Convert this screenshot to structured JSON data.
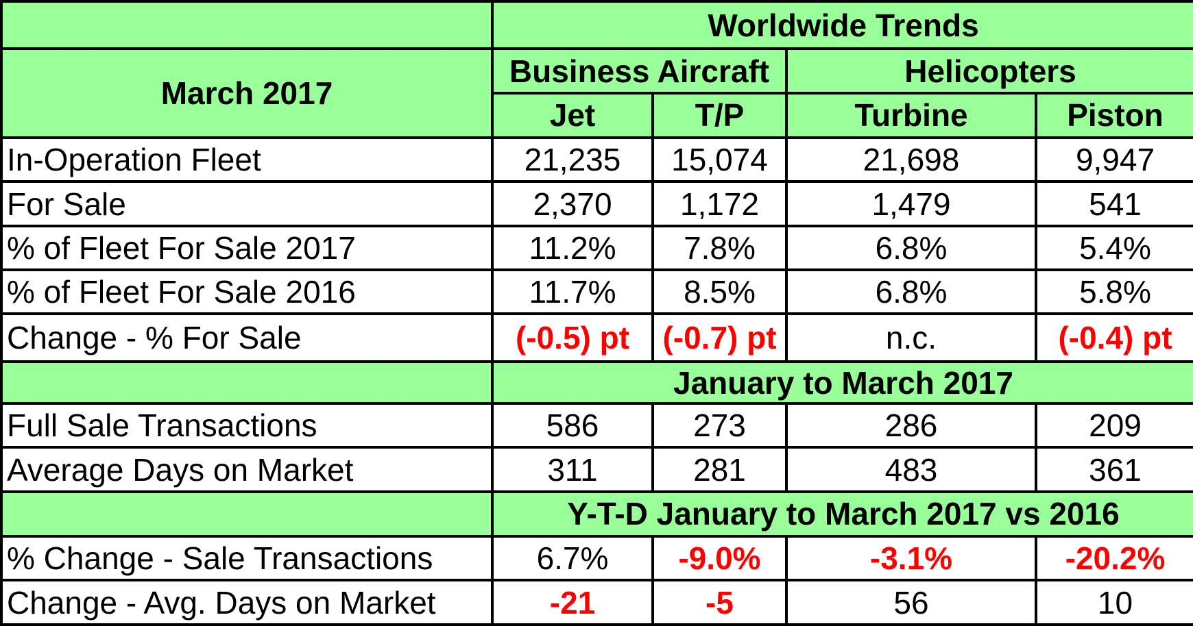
{
  "header": {
    "worldwide_trends": "Worldwide Trends",
    "period": "March 2017",
    "business_aircraft": "Business Aircraft",
    "helicopters": "Helicopters",
    "col_jet": "Jet",
    "col_tp": "T/P",
    "col_turbine": "Turbine",
    "col_piston": "Piston"
  },
  "rows": [
    {
      "label": "In-Operation Fleet",
      "jet": "21,235",
      "tp": "15,074",
      "turbine": "21,698",
      "piston": "9,947"
    },
    {
      "label": "For Sale",
      "jet": "2,370",
      "tp": "1,172",
      "turbine": "1,479",
      "piston": "541"
    },
    {
      "label": "% of Fleet For Sale 2017",
      "jet": "11.2%",
      "tp": "7.8%",
      "turbine": "6.8%",
      "piston": "5.4%"
    },
    {
      "label": "% of Fleet For Sale 2016",
      "jet": "11.7%",
      "tp": "8.5%",
      "turbine": "6.8%",
      "piston": "5.8%"
    },
    {
      "label": "Change - % For Sale",
      "jet": "(-0.5) pt",
      "tp": "(-0.7) pt",
      "turbine": "n.c.",
      "piston": "(-0.4) pt"
    }
  ],
  "section2": {
    "title": "January to March 2017",
    "rows": [
      {
        "label": "Full Sale Transactions",
        "jet": "586",
        "tp": "273",
        "turbine": "286",
        "piston": "209"
      },
      {
        "label": "Average Days on Market",
        "jet": "311",
        "tp": "281",
        "turbine": "483",
        "piston": "361"
      }
    ]
  },
  "section3": {
    "title": "Y-T-D January to March 2017 vs 2016",
    "rows": [
      {
        "label": "% Change  - Sale Transactions",
        "jet": "6.7%",
        "tp": "-9.0%",
        "turbine": "-3.1%",
        "piston": "-20.2%"
      },
      {
        "label": "Change -  Avg. Days on Market",
        "jet": "-21",
        "tp": "-5",
        "turbine": "56",
        "piston": "10"
      }
    ]
  },
  "colors": {
    "header_green": "#99ff99",
    "negative_red": "#ff0000",
    "border": "#000000"
  }
}
